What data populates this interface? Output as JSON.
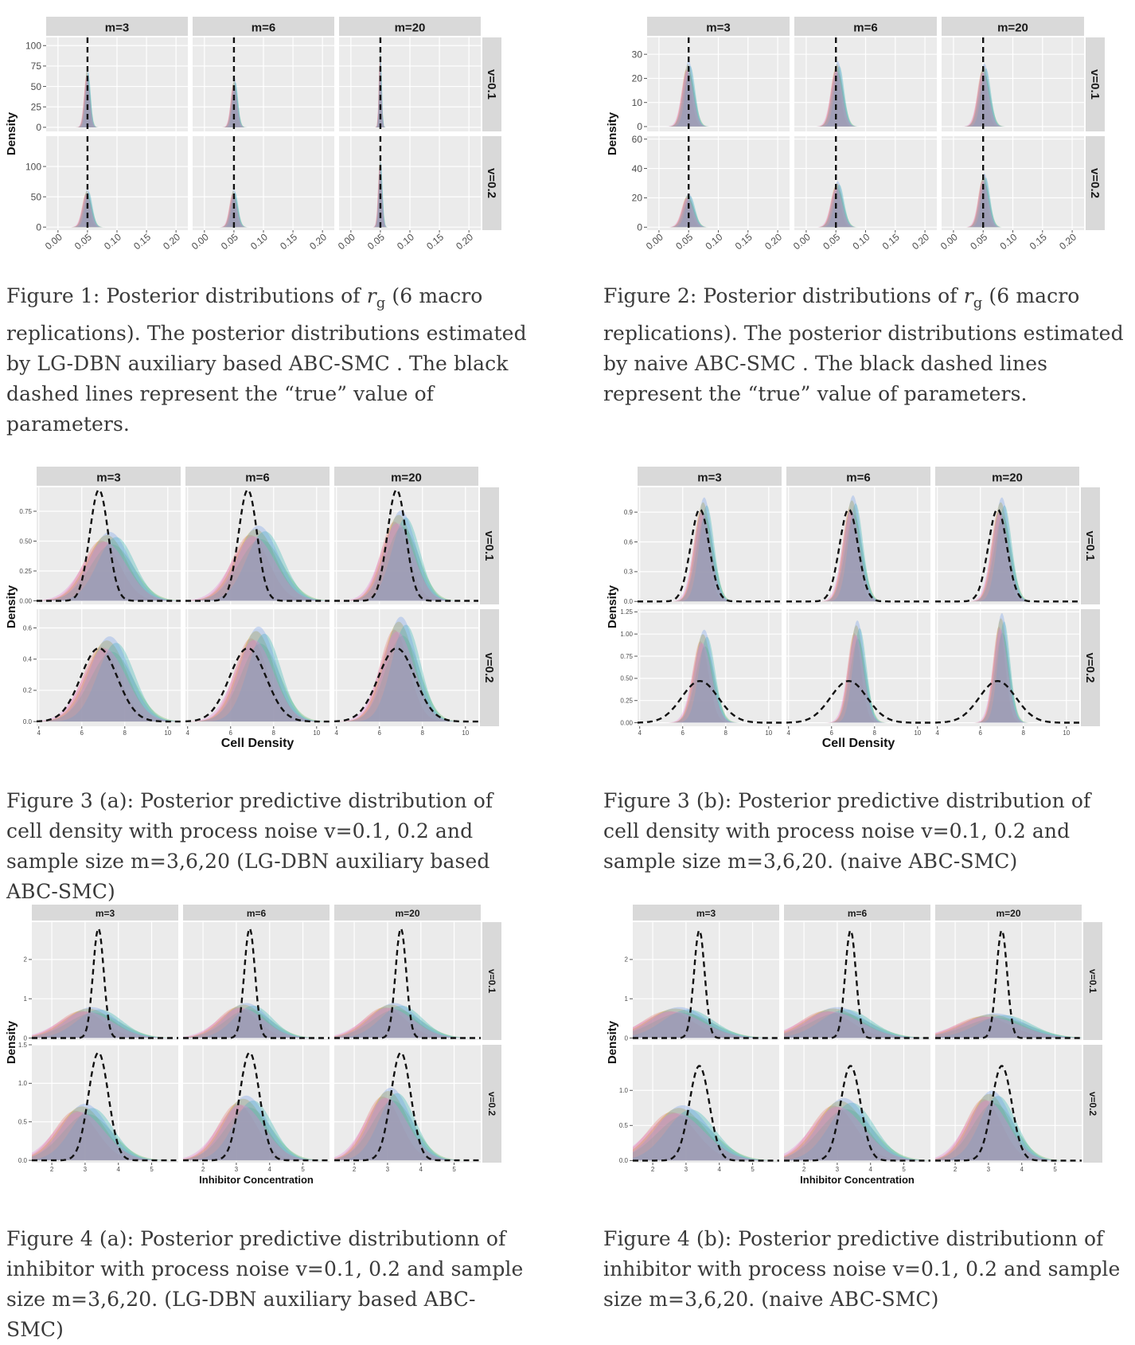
{
  "figures": [
    {
      "id": "fig1",
      "caption_parts": [
        "Figure 1: Posterior distributions of ",
        "r",
        "g",
        " (6 macro replications). The posterior distributions estimated by LG-DBN auxiliary based ABC-SMC . The black dashed lines represent the “true” value of parameters."
      ]
    },
    {
      "id": "fig2",
      "caption_parts": [
        "Figure 2: Posterior distributions of ",
        "r",
        "g",
        " (6 macro replications). The posterior distributions estimated by naive ABC-SMC . The black dashed lines represent the “true” value of parameters."
      ]
    },
    {
      "id": "fig3a",
      "caption": "Figure 3 (a): Posterior predictive distribution of cell density with process noise v=0.1, 0.2 and sample size m=3,6,20 (LG-DBN auxiliary based ABC-SMC)"
    },
    {
      "id": "fig3b",
      "caption": "Figure 3 (b): Posterior predictive distribution of cell density with process noise v=0.1, 0.2 and sample size m=3,6,20. (naive ABC-SMC)"
    },
    {
      "id": "fig4a",
      "caption": "Figure 4 (a): Posterior predictive distributionn of inhibitor with process noise v=0.1, 0.2 and sample size m=3,6,20. (LG-DBN auxiliary based ABC-SMC)"
    },
    {
      "id": "fig4b",
      "caption": "Figure 4 (b): Posterior predictive distributionn of inhibitor with process noise v=0.1, 0.2 and sample size m=3,6,20. (naive ABC-SMC)"
    }
  ],
  "chart_data": [
    {
      "id": "fig1",
      "type": "area",
      "facet_cols": [
        "m=3",
        "m=6",
        "m=20"
      ],
      "facet_rows": [
        "v=0.1",
        "v=0.2"
      ],
      "ylabel": "Density",
      "xlabel": "",
      "x_ticks": [
        "0.00",
        "0.05",
        "0.10",
        "0.15",
        "0.20"
      ],
      "xlim": [
        -0.02,
        0.22
      ],
      "y_ticks": [
        [
          "0",
          "25",
          "50",
          "75",
          "100"
        ],
        [
          "0",
          "50",
          "100"
        ]
      ],
      "ylim": [
        [
          -5,
          110
        ],
        [
          -5,
          150
        ]
      ],
      "truth_x": 0.05,
      "series_count": 6,
      "panels": [
        [
          {
            "center": 0.05,
            "sd": 0.0045,
            "peak": 70
          },
          {
            "center": 0.051,
            "sd": 0.005,
            "peak": 58
          },
          {
            "center": 0.05,
            "sd": 0.002,
            "peak": 100
          }
        ],
        [
          {
            "center": 0.05,
            "sd": 0.007,
            "peak": 60
          },
          {
            "center": 0.05,
            "sd": 0.006,
            "peak": 60
          },
          {
            "center": 0.05,
            "sd": 0.003,
            "peak": 115
          }
        ]
      ]
    },
    {
      "id": "fig2",
      "type": "area",
      "facet_cols": [
        "m=3",
        "m=6",
        "m=20"
      ],
      "facet_rows": [
        "v=0.1",
        "v=0.2"
      ],
      "ylabel": "Density",
      "xlabel": "",
      "x_ticks": [
        "0.00",
        "0.05",
        "0.10",
        "0.15",
        "0.20"
      ],
      "xlim": [
        -0.02,
        0.22
      ],
      "y_ticks": [
        [
          "0",
          "10",
          "20",
          "30"
        ],
        [
          "0",
          "20",
          "40",
          "60"
        ]
      ],
      "ylim": [
        [
          -2,
          37
        ],
        [
          -2,
          62
        ]
      ],
      "truth_x": 0.05,
      "series_count": 6,
      "panels": [
        [
          {
            "center": 0.05,
            "sd": 0.009,
            "peak": 26
          },
          {
            "center": 0.053,
            "sd": 0.009,
            "peak": 26
          },
          {
            "center": 0.052,
            "sd": 0.009,
            "peak": 25
          }
        ],
        [
          {
            "center": 0.05,
            "sd": 0.009,
            "peak": 22
          },
          {
            "center": 0.053,
            "sd": 0.009,
            "peak": 30
          },
          {
            "center": 0.052,
            "sd": 0.008,
            "peak": 35
          }
        ]
      ]
    },
    {
      "id": "fig3a",
      "type": "area",
      "facet_cols": [
        "m=3",
        "m=6",
        "m=20"
      ],
      "facet_rows": [
        "v=0.1",
        "v=0.2"
      ],
      "ylabel": "Density",
      "xlabel": "Cell Density",
      "x_ticks": [
        "4",
        "6",
        "8",
        "10"
      ],
      "xlim": [
        3.9,
        10.6
      ],
      "y_ticks": [
        [
          "0.00",
          "0.25",
          "0.50",
          "0.75"
        ],
        [
          "0.0",
          "0.2",
          "0.4",
          "0.6"
        ]
      ],
      "ylim": [
        [
          -0.03,
          0.95
        ],
        [
          -0.03,
          0.72
        ]
      ],
      "truth": [
        {
          "mean": 6.8,
          "sd": 0.43,
          "peak": 0.93
        },
        {
          "mean": 6.8,
          "sd": 0.85,
          "peak": 0.47
        }
      ],
      "series_count": 6,
      "panels": [
        [
          {
            "center": 7.3,
            "sd": 0.95,
            "peak": 0.55
          },
          {
            "center": 7.3,
            "sd": 0.95,
            "peak": 0.6
          },
          {
            "center": 7.0,
            "sd": 0.72,
            "peak": 0.72
          }
        ],
        [
          {
            "center": 7.3,
            "sd": 0.95,
            "peak": 0.52
          },
          {
            "center": 7.3,
            "sd": 0.85,
            "peak": 0.58
          },
          {
            "center": 7.0,
            "sd": 0.75,
            "peak": 0.64
          }
        ]
      ]
    },
    {
      "id": "fig3b",
      "type": "area",
      "facet_cols": [
        "m=3",
        "m=6",
        "m=20"
      ],
      "facet_rows": [
        "v=0.1",
        "v=0.2"
      ],
      "ylabel": "Density",
      "xlabel": "Cell Density",
      "x_ticks": [
        "4",
        "6",
        "8",
        "10"
      ],
      "xlim": [
        3.9,
        10.6
      ],
      "y_ticks": [
        [
          "0.0",
          "0.3",
          "0.6",
          "0.9"
        ],
        [
          "0.00",
          "0.25",
          "0.50",
          "0.75",
          "1.00",
          "1.25"
        ]
      ],
      "ylim": [
        [
          -0.03,
          1.15
        ],
        [
          -0.04,
          1.28
        ]
      ],
      "truth": [
        {
          "mean": 6.8,
          "sd": 0.43,
          "peak": 0.93
        },
        {
          "mean": 6.8,
          "sd": 0.85,
          "peak": 0.47
        }
      ],
      "series_count": 6,
      "panels": [
        [
          {
            "center": 7.0,
            "sd": 0.38,
            "peak": 1.0
          },
          {
            "center": 7.0,
            "sd": 0.38,
            "peak": 1.02
          },
          {
            "center": 7.0,
            "sd": 0.38,
            "peak": 1.0
          }
        ],
        [
          {
            "center": 7.0,
            "sd": 0.42,
            "peak": 1.0
          },
          {
            "center": 7.2,
            "sd": 0.35,
            "peak": 1.1
          },
          {
            "center": 7.0,
            "sd": 0.32,
            "peak": 1.18
          }
        ]
      ]
    },
    {
      "id": "fig4a",
      "type": "area",
      "facet_cols": [
        "m=3",
        "m=6",
        "m=20"
      ],
      "facet_rows": [
        "v=0.1",
        "v=0.2"
      ],
      "ylabel": "Density",
      "xlabel": "Inhibitor Concentration",
      "x_ticks": [
        "2",
        "3",
        "4",
        "5"
      ],
      "xlim": [
        1.4,
        5.8
      ],
      "y_ticks": [
        [
          "0",
          "1",
          "2"
        ],
        [
          "0.0",
          "0.5",
          "1.0",
          "1.5"
        ]
      ],
      "ylim": [
        [
          -0.05,
          2.95
        ],
        [
          -0.03,
          1.5
        ]
      ],
      "truth": [
        {
          "mean": 3.4,
          "sd": 0.16,
          "peak": 2.8
        },
        {
          "mean": 3.4,
          "sd": 0.3,
          "peak": 1.4
        }
      ],
      "series_count": 6,
      "panels": [
        [
          {
            "center": 3.2,
            "sd": 0.75,
            "peak": 0.75
          },
          {
            "center": 3.3,
            "sd": 0.65,
            "peak": 0.85
          },
          {
            "center": 3.2,
            "sd": 0.7,
            "peak": 0.85
          }
        ],
        [
          {
            "center": 3.0,
            "sd": 0.7,
            "peak": 0.7
          },
          {
            "center": 3.3,
            "sd": 0.65,
            "peak": 0.8
          },
          {
            "center": 3.1,
            "sd": 0.6,
            "peak": 0.9
          }
        ]
      ]
    },
    {
      "id": "fig4b",
      "type": "area",
      "facet_cols": [
        "m=3",
        "m=6",
        "m=20"
      ],
      "facet_rows": [
        "v=0.1",
        "v=0.2"
      ],
      "ylabel": "Density",
      "xlabel": "Inhibitor Concentration",
      "x_ticks": [
        "2",
        "3",
        "4",
        "5"
      ],
      "xlim": [
        1.4,
        5.8
      ],
      "y_ticks": [
        [
          "0",
          "1",
          "2"
        ],
        [
          "0.0",
          "0.5",
          "1.0"
        ]
      ],
      "ylim": [
        [
          -0.05,
          2.95
        ],
        [
          -0.03,
          1.65
        ]
      ],
      "truth": [
        {
          "mean": 3.4,
          "sd": 0.16,
          "peak": 2.75
        },
        {
          "mean": 3.4,
          "sd": 0.3,
          "peak": 1.35
        }
      ],
      "series_count": 6,
      "panels": [
        [
          {
            "center": 2.8,
            "sd": 0.85,
            "peak": 0.75
          },
          {
            "center": 3.0,
            "sd": 0.85,
            "peak": 0.75
          },
          {
            "center": 3.2,
            "sd": 0.9,
            "peak": 0.6
          }
        ],
        [
          {
            "center": 2.9,
            "sd": 0.8,
            "peak": 0.75
          },
          {
            "center": 3.2,
            "sd": 0.75,
            "peak": 0.85
          },
          {
            "center": 3.1,
            "sd": 0.6,
            "peak": 0.95
          }
        ]
      ]
    }
  ],
  "colors": {
    "panel_bg": "#ebebeb",
    "grid_major": "#ffffff",
    "strip_bg": "#d9d9d9",
    "series": [
      "#e8776e",
      "#b79f00",
      "#5cb85c",
      "#2db5b0",
      "#6f9de8",
      "#e27bd3"
    ],
    "truth_line": "#111111"
  }
}
